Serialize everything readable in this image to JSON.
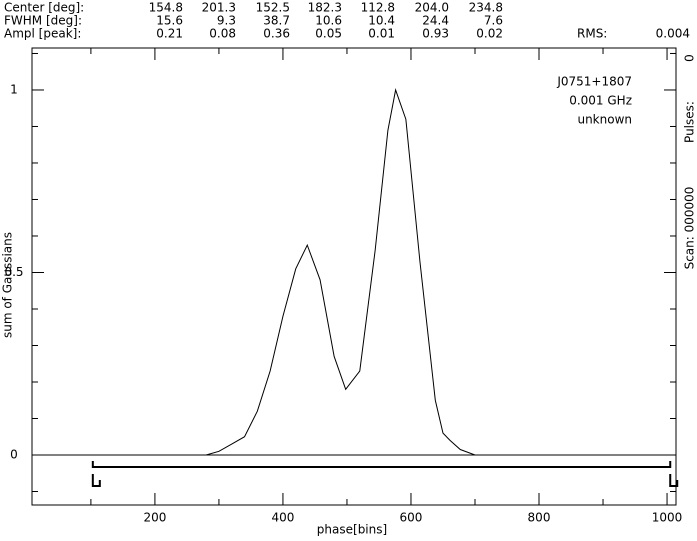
{
  "header": {
    "rows": [
      {
        "label": "Center [deg]:",
        "values": [
          "154.8",
          "201.3",
          "152.5",
          "182.3",
          "112.8",
          "204.0",
          "234.8"
        ]
      },
      {
        "label": "FWHM [deg]:",
        "values": [
          "15.6",
          "9.3",
          "38.7",
          "10.6",
          "10.4",
          "24.4",
          "7.6"
        ]
      },
      {
        "label": "Ampl [peak]:",
        "values": [
          "0.21",
          "0.08",
          "0.36",
          "0.05",
          "0.01",
          "0.93",
          "0.02"
        ]
      }
    ],
    "rms_label": "RMS:",
    "rms_value": "0.004"
  },
  "side": {
    "pulses_value": "0",
    "pulses_label": "Pulses:",
    "scan": "Scan: 000000"
  },
  "chart_data": {
    "type": "line",
    "source": [
      "J0751+1807",
      "0.001 GHz",
      "unknown"
    ],
    "xlabel": "phase[bins]",
    "ylabel": "sum of Gaussians",
    "x": [
      8,
      280,
      300,
      320,
      340,
      360,
      380,
      400,
      420,
      438,
      458,
      480,
      498,
      520,
      544,
      564,
      576,
      592,
      614,
      638,
      650,
      661,
      677,
      700,
      1014
    ],
    "values": [
      0,
      0,
      0.01,
      0.03,
      0.05,
      0.12,
      0.23,
      0.38,
      0.51,
      0.575,
      0.48,
      0.27,
      0.18,
      0.23,
      0.56,
      0.89,
      1.0,
      0.92,
      0.53,
      0.15,
      0.06,
      0.04,
      0.015,
      0,
      0
    ],
    "color": "#000000",
    "window": [
      103,
      1005
    ],
    "xlim": [
      8,
      1014
    ],
    "ylim": [
      -0.137,
      1.115
    ],
    "xticks": [
      200,
      400,
      600,
      800,
      1000
    ],
    "yticks": [
      0,
      0.5,
      1
    ],
    "xminorticks": [
      100,
      300,
      500,
      700,
      900
    ],
    "yminorticks": [
      -0.1,
      0.1,
      0.2,
      0.3,
      0.4,
      0.6,
      0.7,
      0.8,
      0.9,
      1.1
    ]
  }
}
